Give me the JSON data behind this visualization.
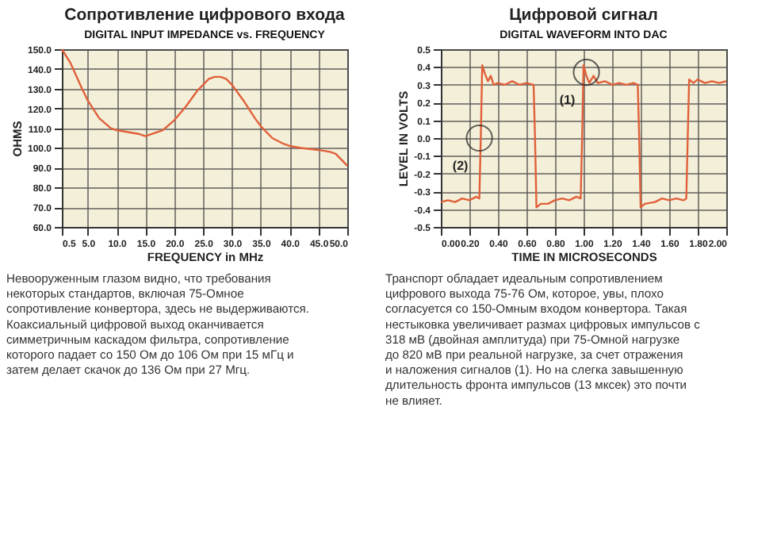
{
  "chart_data": [
    {
      "type": "line",
      "title": "Сопротивление цифрового входа",
      "subtitle": "DIGITAL INPUT IMPEDANCE vs. FREQUENCY",
      "xlabel": "FREQUENCY in MHz",
      "ylabel": "OHMS",
      "x": [
        0.5,
        2,
        4,
        5,
        7,
        9,
        10,
        12,
        14,
        15,
        16,
        18,
        20,
        22,
        24,
        26,
        27,
        28,
        29,
        30,
        32,
        34,
        35,
        37,
        39,
        40,
        42,
        45,
        47,
        48,
        49,
        50
      ],
      "series": [
        {
          "color": "#e0603a",
          "values": [
            150,
            143,
            130,
            124,
            115,
            110,
            109,
            108,
            107,
            106,
            107,
            109,
            114,
            121,
            129,
            135,
            136,
            136,
            135,
            132,
            124,
            115,
            111,
            105,
            102,
            101,
            100,
            99,
            98,
            97,
            94,
            91
          ]
        }
      ],
      "xlim": [
        0.5,
        50
      ],
      "xticks": [
        0.5,
        {
          "value": 5,
          "label": "5.0"
        },
        {
          "value": 10,
          "label": "10.0"
        },
        {
          "value": 15,
          "label": "15.0"
        },
        {
          "value": 20,
          "label": "20.0"
        },
        {
          "value": 25,
          "label": "25.0"
        },
        {
          "value": 30,
          "label": "30.0"
        },
        {
          "value": 35,
          "label": "35.0"
        },
        {
          "value": 40,
          "label": "40.0"
        },
        {
          "value": 45,
          "label": "45.0"
        },
        {
          "value": 50,
          "label": "50.0"
        }
      ],
      "ylim": [
        60,
        150
      ],
      "yticks": [
        {
          "value": 60,
          "label": "60.0"
        },
        {
          "value": 70,
          "label": "70.0"
        },
        {
          "value": 80,
          "label": "80.0"
        },
        {
          "value": 90,
          "label": "90.0"
        },
        {
          "value": 100,
          "label": "100.0"
        },
        {
          "value": 110,
          "label": "110.0"
        },
        {
          "value": 120,
          "label": "120.0"
        },
        {
          "value": 130,
          "label": "130.0"
        },
        {
          "value": 140,
          "label": "140.0"
        },
        {
          "value": 150,
          "label": "150.0"
        }
      ],
      "grid": true,
      "annotations": [
        "Невооруженным глазом видно, что требования некоторых стандартов, включая 75-Омное сопротивление конвертора, здесь не выдерживаются. Коаксиальный цифровой выход оканчивается симметричным каскадом фильтра, сопротивление которого падает со 150 Ом до 106 Ом при 15 мГц и затем делает скачок до 136 Ом при 27 Мгц."
      ]
    },
    {
      "type": "line",
      "title": "Цифровой сигнал",
      "subtitle": "DIGITAL WAVEFORM INTO DAC",
      "xlabel": "TIME IN MICROSECONDS",
      "ylabel": "LEVEL IN VOLTS",
      "x": [
        0,
        0.05,
        0.1,
        0.15,
        0.2,
        0.25,
        0.27,
        0.28,
        0.29,
        0.31,
        0.33,
        0.35,
        0.37,
        0.4,
        0.45,
        0.5,
        0.55,
        0.6,
        0.65,
        0.66,
        0.67,
        0.7,
        0.75,
        0.8,
        0.85,
        0.9,
        0.95,
        0.98,
        0.99,
        1.0,
        1.02,
        1.04,
        1.07,
        1.1,
        1.15,
        1.2,
        1.25,
        1.3,
        1.35,
        1.38,
        1.39,
        1.4,
        1.43,
        1.5,
        1.55,
        1.6,
        1.65,
        1.7,
        1.72,
        1.73,
        1.74,
        1.77,
        1.8,
        1.85,
        1.9,
        1.95,
        2.0
      ],
      "series": [
        {
          "color": "#e0603a",
          "values": [
            -0.36,
            -0.35,
            -0.36,
            -0.34,
            -0.35,
            -0.33,
            -0.34,
            0.0,
            0.41,
            0.36,
            0.32,
            0.35,
            0.3,
            0.31,
            0.3,
            0.32,
            0.3,
            0.31,
            0.3,
            0.0,
            -0.39,
            -0.37,
            -0.37,
            -0.35,
            -0.34,
            -0.35,
            -0.33,
            -0.34,
            0.0,
            0.41,
            0.35,
            0.31,
            0.35,
            0.31,
            0.32,
            0.3,
            0.31,
            0.3,
            0.31,
            0.3,
            0.0,
            -0.39,
            -0.37,
            -0.36,
            -0.34,
            -0.35,
            -0.34,
            -0.35,
            -0.34,
            0.0,
            0.33,
            0.31,
            0.33,
            0.31,
            0.32,
            0.31,
            0.32
          ]
        }
      ],
      "xlim": [
        0,
        2
      ],
      "xticks": [
        {
          "value": 0,
          "label": "0.00"
        },
        {
          "value": 0.2,
          "label": "0.20"
        },
        {
          "value": 0.4,
          "label": "0.40"
        },
        {
          "value": 0.6,
          "label": "0.60"
        },
        {
          "value": 0.8,
          "label": "0.80"
        },
        {
          "value": 1,
          "label": "1.00"
        },
        {
          "value": 1.2,
          "label": "1.20"
        },
        {
          "value": 1.4,
          "label": "1.40"
        },
        {
          "value": 1.6,
          "label": "1.60"
        },
        {
          "value": 1.8,
          "label": "1.80"
        },
        {
          "value": 2,
          "label": "2.00"
        }
      ],
      "ylim": [
        -0.5,
        0.5
      ],
      "yticks": [
        -0.5,
        -0.4,
        -0.3,
        -0.2,
        -0.1,
        {
          "value": 0,
          "label": "0.0"
        },
        0.1,
        0.2,
        0.3,
        0.4,
        0.5
      ],
      "grid": true,
      "annotations": [
        {
          "text": "(1)",
          "x": 1.02,
          "y": 0.37
        },
        {
          "text": "(2)",
          "x": 0.27,
          "y": 0.0
        },
        "Транспорт обладает идеальным сопротивлением цифрового выхода 75-76 Ом, которое, увы, плохо согласуется со 150-Омным входом конвертора. Такая нестыковка увеличивает размах цифровых импульсов с 318 мВ (двойная амплитуда) при 75-Омной нагрузке до 820 мВ при реальной нагрузке, за счет отражения и наложения сигналов (1). Но на слегка завышенную длительность фронта импульсов (13 мксек) это почти не влияет."
      ]
    }
  ]
}
